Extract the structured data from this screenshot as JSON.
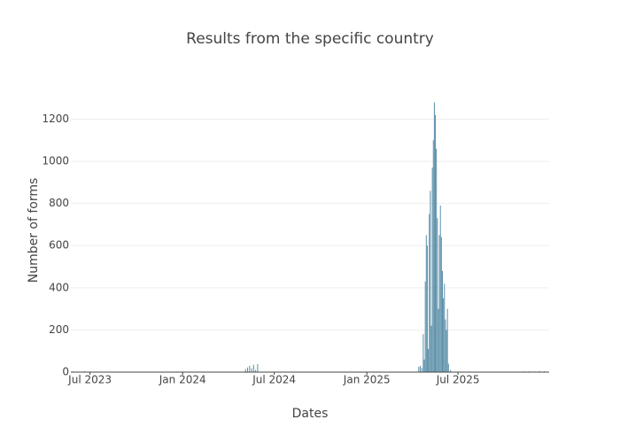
{
  "chart_data": {
    "type": "bar",
    "title": "Results from the specific country",
    "x_label": "Dates",
    "y_label": "Number of forms",
    "x": [
      "2023-05-28",
      "2023-06-05",
      "2023-06-20",
      "2024-05-05",
      "2024-05-09",
      "2024-05-13",
      "2024-05-17",
      "2024-05-21",
      "2024-05-25",
      "2024-05-29",
      "2025-04-14",
      "2025-04-17",
      "2025-04-20",
      "2025-04-23",
      "2025-04-25",
      "2025-04-27",
      "2025-04-29",
      "2025-05-01",
      "2025-05-03",
      "2025-05-05",
      "2025-05-07",
      "2025-05-09",
      "2025-05-11",
      "2025-05-13",
      "2025-05-15",
      "2025-05-17",
      "2025-05-19",
      "2025-05-21",
      "2025-05-23",
      "2025-05-25",
      "2025-05-27",
      "2025-05-29",
      "2025-05-31",
      "2025-06-02",
      "2025-06-04",
      "2025-06-06",
      "2025-06-08",
      "2025-06-10",
      "2025-06-12",
      "2025-06-16",
      "2025-11-10",
      "2025-11-20",
      "2025-12-01",
      "2025-12-10",
      "2025-12-20"
    ],
    "values": [
      3,
      2,
      4,
      15,
      22,
      30,
      18,
      35,
      10,
      38,
      25,
      30,
      20,
      180,
      60,
      430,
      650,
      600,
      110,
      750,
      860,
      220,
      970,
      1100,
      1280,
      1220,
      1060,
      730,
      300,
      650,
      790,
      640,
      480,
      350,
      420,
      250,
      200,
      300,
      40,
      10,
      3,
      4,
      3,
      5,
      4
    ],
    "color": "#5b8fa8",
    "xlim": [
      "2023-05-24",
      "2025-12-29"
    ],
    "xticks": [
      {
        "value": "2023-07-01",
        "label": "Jul 2023"
      },
      {
        "value": "2024-01-01",
        "label": "Jan 2024"
      },
      {
        "value": "2024-07-01",
        "label": "Jul 2024"
      },
      {
        "value": "2025-01-01",
        "label": "Jan 2025"
      },
      {
        "value": "2025-07-01",
        "label": "Jul 2025"
      }
    ],
    "ylim": [
      0,
      1345
    ],
    "yticks": [
      0,
      200,
      400,
      600,
      800,
      1000,
      1200
    ],
    "grid": true
  }
}
